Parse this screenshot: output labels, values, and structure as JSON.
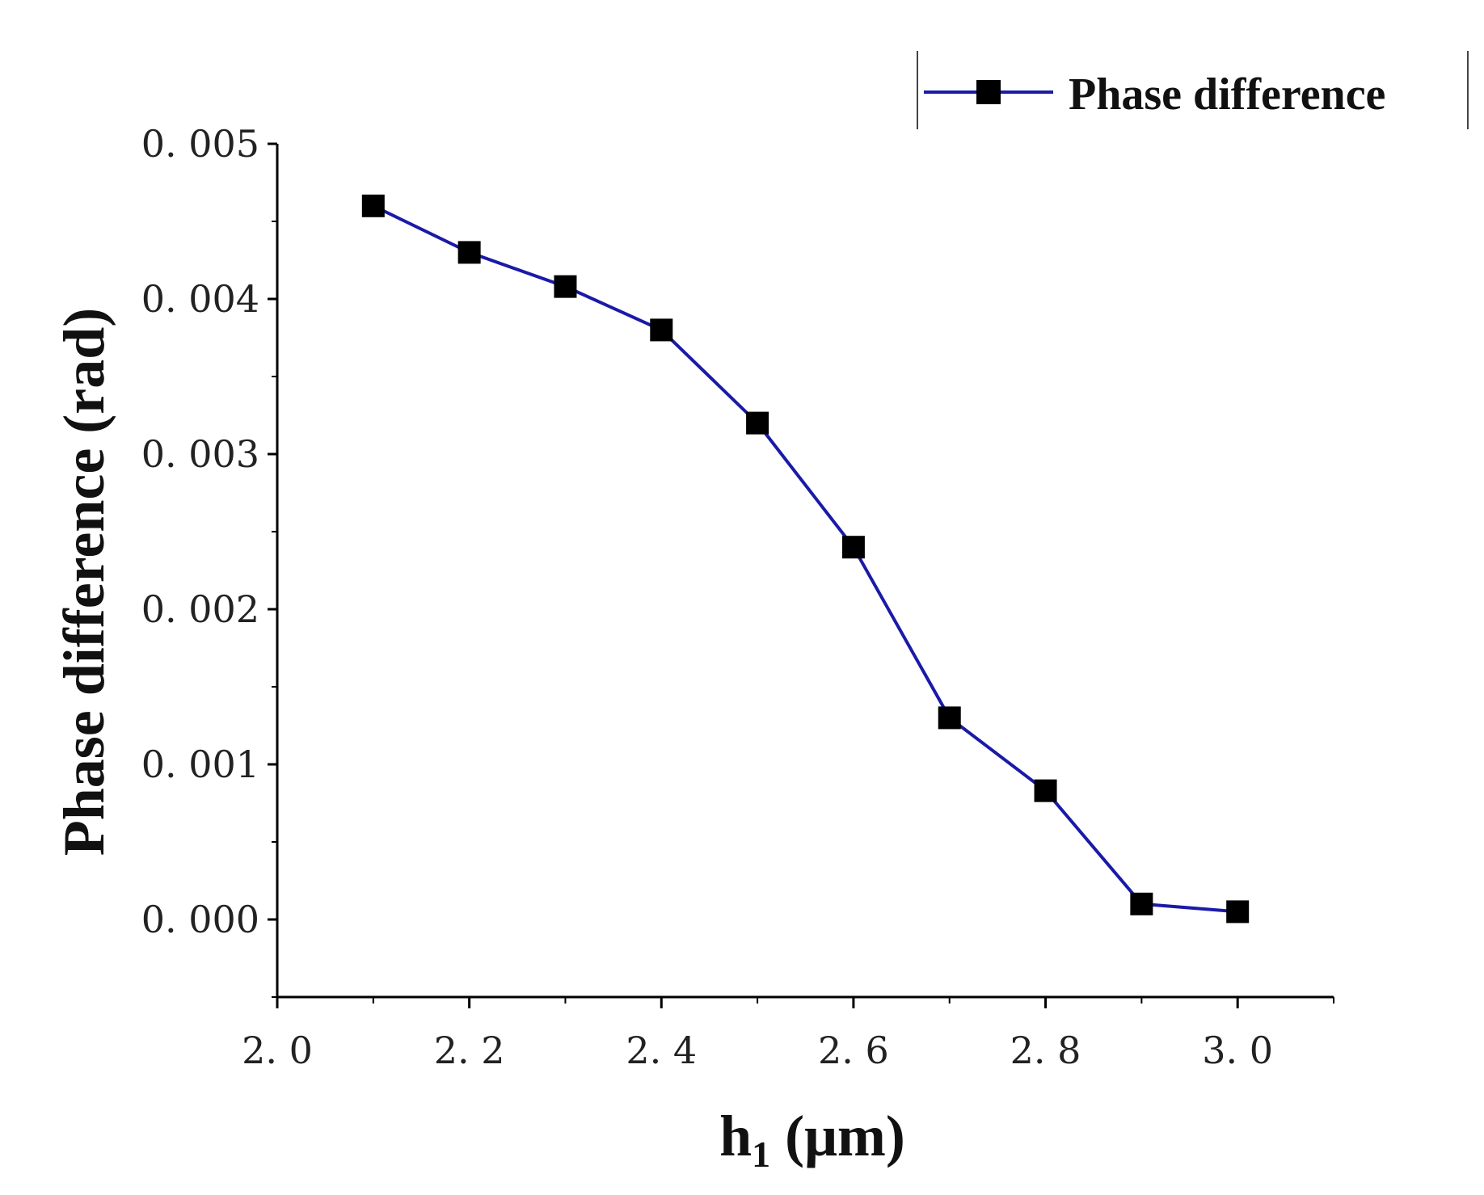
{
  "chart_data": {
    "type": "line",
    "title": "",
    "xlabel_main": "h",
    "xlabel_sub": "1",
    "xlabel_unit": " (μm)",
    "ylabel": "Phase difference (rad)",
    "xlim": [
      2.0,
      3.1
    ],
    "ylim": [
      -0.0005,
      0.005
    ],
    "xticks": [
      2.0,
      2.2,
      2.4,
      2.6,
      2.8,
      3.0
    ],
    "xtick_labels": [
      "2. 0",
      "2. 2",
      "2. 4",
      "2. 6",
      "2. 8",
      "3. 0"
    ],
    "yticks": [
      0.0,
      0.001,
      0.002,
      0.003,
      0.004,
      0.005
    ],
    "ytick_labels": [
      "0. 000",
      "0. 001",
      "0. 002",
      "0. 003",
      "0. 004",
      "0. 005"
    ],
    "grid": false,
    "legend_position": "top-right",
    "series": [
      {
        "name": "Phase difference",
        "color": "#1a1aa8",
        "marker": "square",
        "marker_color": "#000000",
        "x": [
          2.1,
          2.2,
          2.3,
          2.4,
          2.5,
          2.6,
          2.7,
          2.8,
          2.9,
          3.0
        ],
        "values": [
          0.0046,
          0.0043,
          0.00408,
          0.0038,
          0.0032,
          0.0024,
          0.0013,
          0.00083,
          0.0001,
          5e-05
        ]
      }
    ]
  }
}
